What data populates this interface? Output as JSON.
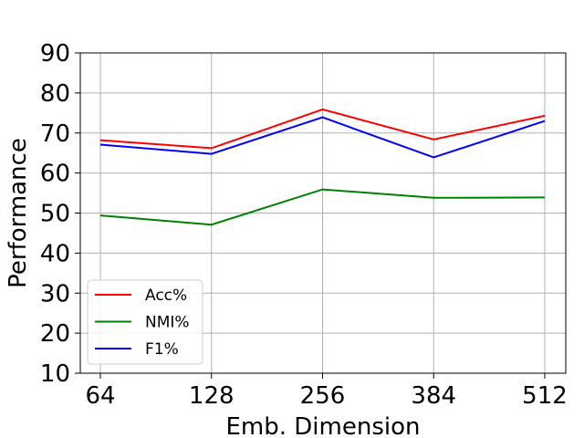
{
  "chart_data": {
    "type": "line",
    "title": "",
    "xlabel": "Emb. Dimension",
    "ylabel": "Performance",
    "categories": [
      "64",
      "128",
      "256",
      "384",
      "512"
    ],
    "ylim": [
      10,
      90
    ],
    "yticks": [
      "10",
      "20",
      "30",
      "40",
      "50",
      "60",
      "70",
      "80",
      "90"
    ],
    "grid": true,
    "legend_position": "lower-left",
    "series": [
      {
        "name": "Acc%",
        "color": "#ff0000",
        "values": [
          68.2,
          66.2,
          75.9,
          68.4,
          74.3
        ]
      },
      {
        "name": "NMI%",
        "color": "#008000",
        "values": [
          49.4,
          47.1,
          55.9,
          53.8,
          53.9
        ]
      },
      {
        "name": "F1%",
        "color": "#0000ff",
        "values": [
          67.1,
          64.8,
          73.9,
          63.9,
          73.0
        ]
      }
    ]
  }
}
